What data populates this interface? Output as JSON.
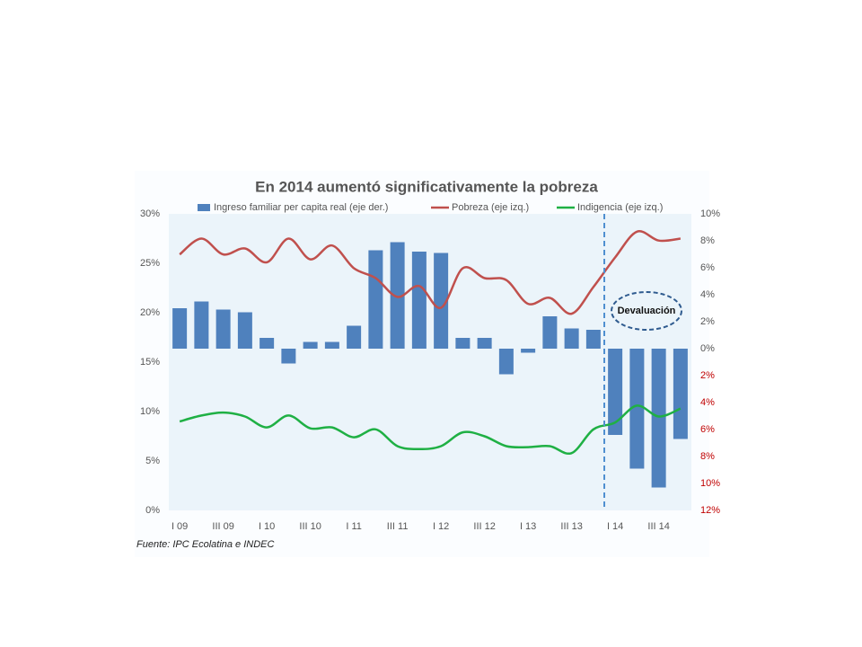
{
  "chart_data": {
    "type": "bar_line",
    "title": "En 2014 aumentó significativamente la pobreza",
    "source": "Fuente: IPC Ecolatina e INDEC",
    "annotation": "Devaluación",
    "categories": [
      "I 09",
      null,
      "III 09",
      null,
      "I 10",
      null,
      "III 10",
      null,
      "I 11",
      null,
      "III 11",
      null,
      "I 12",
      null,
      "III 12",
      null,
      "I 13",
      null,
      "III 13",
      null,
      "I 14",
      null,
      "III 14",
      null
    ],
    "series": [
      {
        "name": "Ingreso familiar per capita real (eje der.)",
        "color": "#4f81bd",
        "axis": "y2",
        "kind": "bar",
        "values": [
          3.0,
          3.5,
          2.9,
          2.7,
          0.8,
          -1.1,
          0.5,
          0.5,
          1.7,
          7.3,
          7.9,
          7.2,
          7.1,
          0.8,
          0.8,
          -1.9,
          -0.3,
          2.4,
          1.5,
          1.4,
          -6.4,
          -8.9,
          -10.3,
          -6.7
        ]
      },
      {
        "name": "Pobreza (eje izq.)",
        "color": "#c0504d",
        "axis": "y",
        "kind": "line",
        "values": [
          25.9,
          27.5,
          25.9,
          26.5,
          25.1,
          27.5,
          25.4,
          26.8,
          24.5,
          23.5,
          21.6,
          22.7,
          20.5,
          24.5,
          23.5,
          23.3,
          20.9,
          21.5,
          19.9,
          22.6,
          25.6,
          28.2,
          27.3,
          27.5
        ]
      },
      {
        "name": "Indigencia (eje izq.)",
        "color": "#1fb044",
        "axis": "y",
        "kind": "line",
        "values": [
          9.0,
          9.6,
          9.9,
          9.5,
          8.4,
          9.6,
          8.3,
          8.4,
          7.4,
          8.2,
          6.5,
          6.2,
          6.5,
          7.9,
          7.5,
          6.5,
          6.4,
          6.5,
          5.8,
          8.2,
          8.9,
          10.6,
          9.5,
          10.3
        ]
      }
    ],
    "ylim": [
      0,
      30
    ],
    "yticks": [
      {
        "value": 0,
        "label": "0%"
      },
      {
        "value": 5,
        "label": "5%"
      },
      {
        "value": 10,
        "label": "10%"
      },
      {
        "value": 15,
        "label": "15%"
      },
      {
        "value": 20,
        "label": "20%"
      },
      {
        "value": 25,
        "label": "25%"
      },
      {
        "value": 30,
        "label": "30%"
      }
    ],
    "y2lim": [
      -12,
      10
    ],
    "y2ticks": [
      {
        "value": -12,
        "label": "12%"
      },
      {
        "value": -10,
        "label": "10%"
      },
      {
        "value": -8,
        "label": "8%"
      },
      {
        "value": -6,
        "label": "6%"
      },
      {
        "value": -4,
        "label": "4%"
      },
      {
        "value": -2,
        "label": "2%"
      },
      {
        "value": 0,
        "label": "0%"
      },
      {
        "value": 2,
        "label": "2%"
      },
      {
        "value": 4,
        "label": "4%"
      },
      {
        "value": 6,
        "label": "6%"
      },
      {
        "value": 8,
        "label": "8%"
      },
      {
        "value": 10,
        "label": "10%"
      }
    ],
    "negative_tick_color": "#c00000"
  }
}
